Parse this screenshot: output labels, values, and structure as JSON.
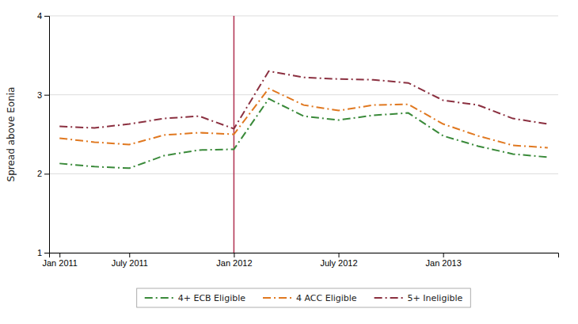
{
  "chart_data": {
    "type": "line",
    "y_label": "Spread above Eonia",
    "categories": [
      "Jan 2011",
      null,
      "July 2011",
      null,
      null,
      "Jan 2012",
      null,
      null,
      "July 2012",
      null,
      null,
      "Jan 2013",
      null,
      null,
      null
    ],
    "ylim": [
      1,
      4
    ],
    "yticks": [
      1,
      2,
      3,
      4
    ],
    "grid": true,
    "legend": "bottom",
    "vline": {
      "x": 5,
      "color": "#b03050"
    },
    "series": [
      {
        "name": "4+ ECB Eligible",
        "color": "#3a8a3a",
        "line_style": "dashdot",
        "values": [
          2.13,
          2.09,
          2.07,
          2.23,
          2.3,
          2.31,
          2.95,
          2.73,
          2.68,
          2.74,
          2.77,
          2.48,
          2.35,
          2.25,
          2.21
        ]
      },
      {
        "name": "4 ACC Eligible",
        "color": "#e07820",
        "line_style": "dashdot",
        "values": [
          2.45,
          2.4,
          2.37,
          2.49,
          2.52,
          2.5,
          3.08,
          2.87,
          2.8,
          2.87,
          2.88,
          2.63,
          2.48,
          2.36,
          2.33
        ]
      },
      {
        "name": "5+ Ineligible",
        "color": "#8b3040",
        "line_style": "dashdot",
        "values": [
          2.6,
          2.58,
          2.63,
          2.7,
          2.73,
          2.57,
          3.3,
          3.22,
          3.2,
          3.19,
          3.15,
          2.93,
          2.87,
          2.7,
          2.63
        ]
      }
    ]
  }
}
